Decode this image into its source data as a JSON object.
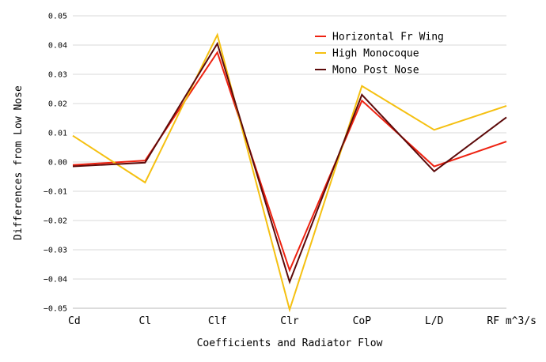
{
  "chart_data": {
    "type": "line",
    "categories": [
      "Cd",
      "Cl",
      "Clf",
      "Clr",
      "CoP",
      "L/D",
      "RF m^3/s"
    ],
    "xlabel": "Coefficients and Radiator Flow",
    "ylabel": "Differences from Low Nose",
    "ylim": [
      -0.05,
      0.05
    ],
    "yticks": [
      0.05,
      0.04,
      0.03,
      0.02,
      0.01,
      0.0,
      -0.01,
      -0.02,
      -0.03,
      -0.04,
      -0.05
    ],
    "ytick_labels": [
      "0.05",
      "0.04",
      "0.03",
      "0.02",
      "0.01",
      "0.00",
      "−0.01",
      "−0.02",
      "−0.03",
      "−0.04",
      "−0.05"
    ],
    "grid": "horizontal",
    "legend_position": "top-right",
    "series": [
      {
        "name": "Horizontal Fr Wing",
        "color": "#ee2211",
        "values": [
          -0.001,
          0.0005,
          0.0375,
          -0.037,
          0.021,
          -0.0015,
          0.007
        ]
      },
      {
        "name": "High Monocoque",
        "color": "#f5c011",
        "values": [
          0.009,
          -0.007,
          0.0435,
          -0.0505,
          0.026,
          0.011,
          0.0192
        ]
      },
      {
        "name": "Mono Post Nose",
        "color": "#5c0a0a",
        "values": [
          -0.0015,
          -0.0002,
          0.0405,
          -0.041,
          0.023,
          -0.0032,
          0.0153
        ]
      }
    ]
  }
}
